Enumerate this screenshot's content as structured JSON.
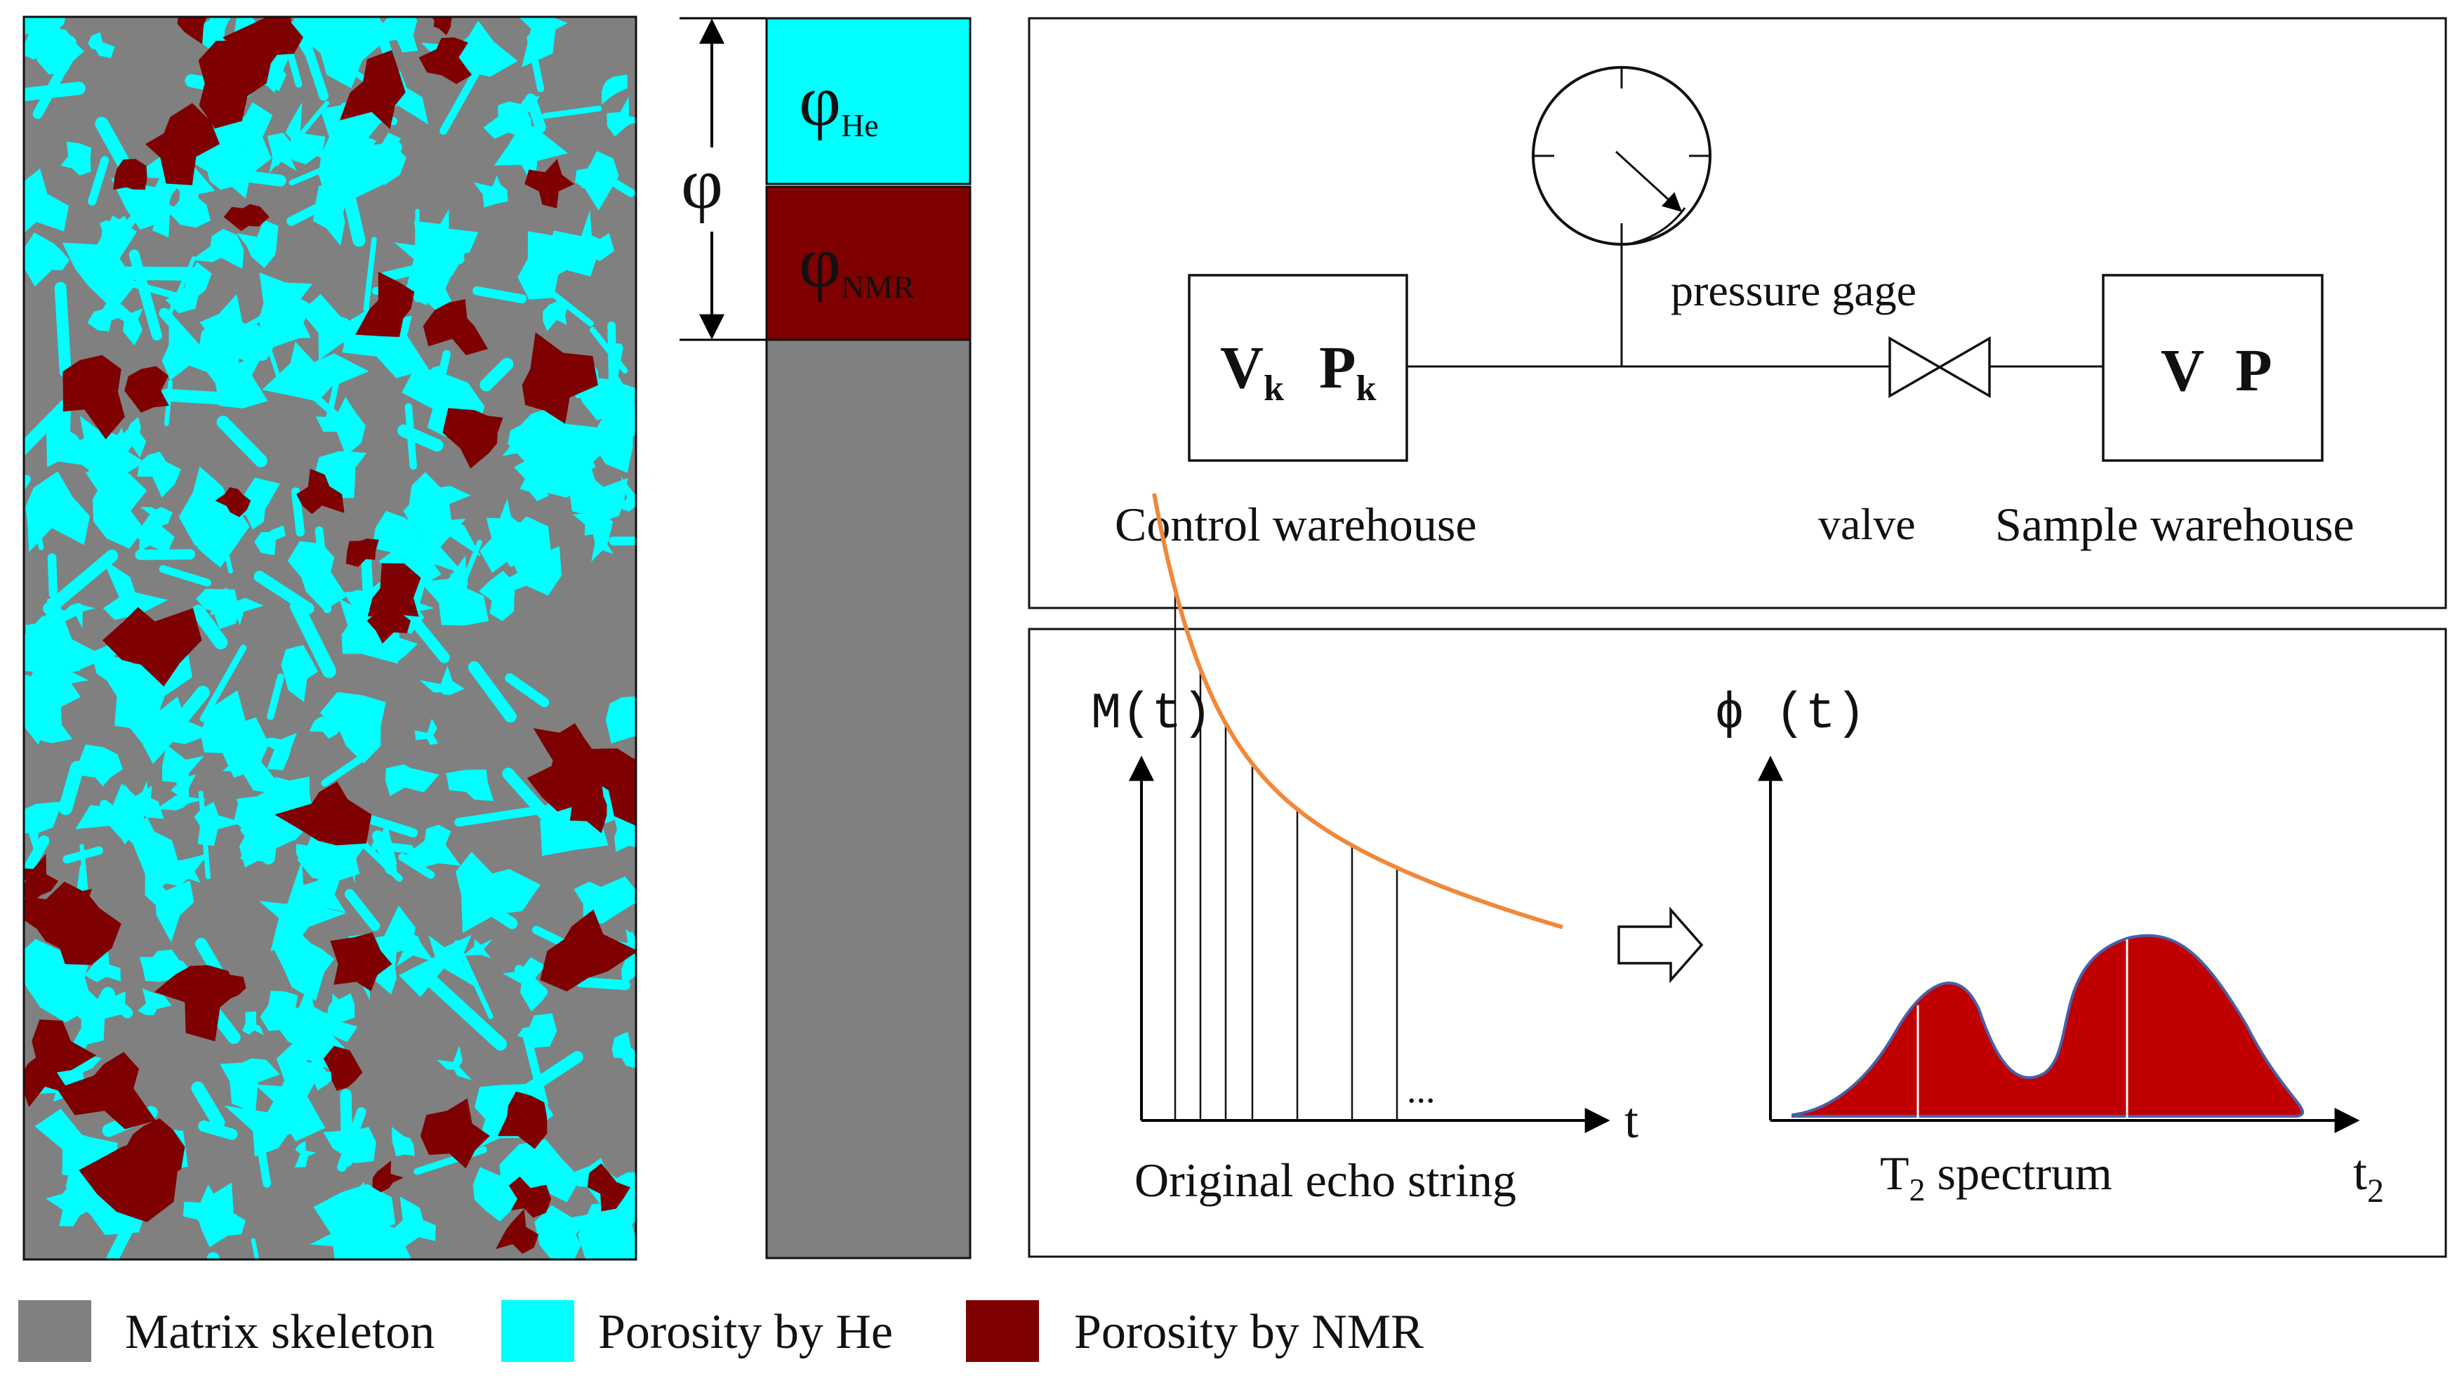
{
  "colors": {
    "skeleton": "#808080",
    "he": "#00FFFF",
    "nmr": "#7F0000",
    "decay_curve": "#F0883A",
    "spectrum_fill": "#C00000",
    "spectrum_edge": "#4A5FA8"
  },
  "porosity_bar": {
    "phi_symbol": "φ",
    "he_label": {
      "main": "φ",
      "sub": "He"
    },
    "nmr_label": {
      "main": "φ",
      "sub": "NMR"
    }
  },
  "apparatus": {
    "control_box": {
      "v": "V",
      "v_sub": "k",
      "p": "P",
      "p_sub": "k"
    },
    "sample_box": {
      "v": "V",
      "p": "P"
    },
    "pressure_gage_label": "pressure gage",
    "valve_label": "valve",
    "control_label": "Control warehouse",
    "sample_label": "Sample warehouse"
  },
  "nmr_plots": {
    "left": {
      "ylabel": "M(t)",
      "xlabel": "t",
      "ellipsis": "...",
      "caption": "Original echo string"
    },
    "right": {
      "ylabel": "ϕ (t)",
      "xlabel": "t",
      "xlabel_sub": "2",
      "caption_main": "T",
      "caption_sub": "2",
      "caption_rest": " spectrum"
    }
  },
  "legend": [
    {
      "label": "Matrix skeleton",
      "color_key": "skeleton"
    },
    {
      "label": "Porosity by He",
      "color_key": "he"
    },
    {
      "label": "Porosity by NMR",
      "color_key": "nmr"
    }
  ]
}
